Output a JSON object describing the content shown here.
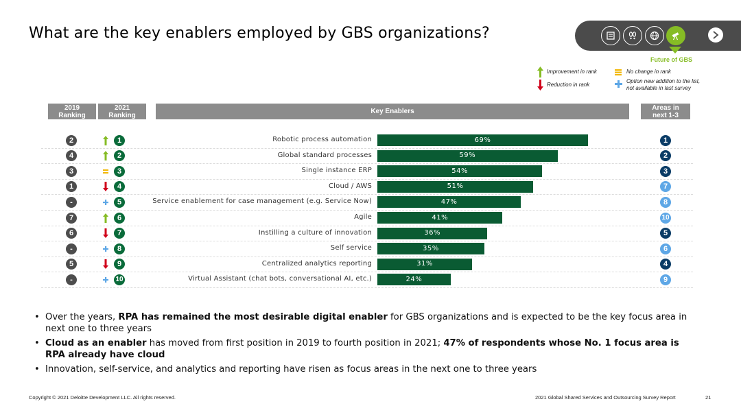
{
  "title": "What are the key enablers employed by GBS organizations?",
  "nav": {
    "icons": [
      "document-icon",
      "footprints-icon",
      "globe-icon",
      "telescope-icon"
    ],
    "active_index": 3,
    "active_label": "Future of GBS",
    "next_icon": "chevron-right-icon",
    "colors": {
      "pill": "#4b4b4b",
      "active": "#86bc25"
    }
  },
  "legend": {
    "improvement": "Improvement in rank",
    "no_change": "No change in rank",
    "reduction": "Reduction in rank",
    "new_line1": "Option new addition to the list,",
    "new_line2": "not available in last survey"
  },
  "headers": {
    "rank2019_line1": "2019",
    "rank2019_line2": "Ranking",
    "rank2021_line1": "2021",
    "rank2021_line2": "Ranking",
    "enablers": "Key Enablers",
    "areas_line1": "Areas in",
    "areas_line2": "next 1-3"
  },
  "chart_data": {
    "type": "bar",
    "orientation": "horizontal",
    "xlim": [
      0,
      100
    ],
    "categories": [
      "Robotic process automation",
      "Global standard processes",
      "Single instance ERP",
      "Cloud / AWS",
      "Service enablement for case management (e.g. Service Now)",
      "Agile",
      "Instilling a culture of innovation",
      "Self service",
      "Centralized analytics reporting",
      "Virtual Assistant (chat bots, conversational AI, etc.)"
    ],
    "values": [
      69,
      59,
      54,
      51,
      47,
      41,
      36,
      35,
      31,
      24
    ],
    "value_labels": [
      "69%",
      "59%",
      "54%",
      "51%",
      "47%",
      "41%",
      "36%",
      "35%",
      "31%",
      "24%"
    ],
    "rank_2019": [
      "2",
      "4",
      "3",
      "1",
      "-",
      "7",
      "6",
      "-",
      "5",
      "-"
    ],
    "rank_2021": [
      "1",
      "2",
      "3",
      "4",
      "5",
      "6",
      "7",
      "8",
      "9",
      "10"
    ],
    "rank_change": [
      "up",
      "up",
      "same",
      "down",
      "new",
      "up",
      "down",
      "new",
      "down",
      "new"
    ],
    "areas_next_1_3": [
      "1",
      "2",
      "3",
      "7",
      "8",
      "10",
      "5",
      "6",
      "4",
      "9"
    ],
    "areas_top3_highlight": [
      true,
      true,
      true,
      false,
      false,
      false,
      true,
      false,
      true,
      false
    ],
    "colors": {
      "bar": "#0a5b33",
      "rank_2019": "#4d4d4d",
      "rank_2021": "#0a6b3a",
      "area_dark": "#0b3c66",
      "area_light": "#5ea7e6",
      "up": "#86bc25",
      "down": "#d0021b",
      "same": "#f2b705",
      "new": "#5ea7e6"
    }
  },
  "bullets": [
    {
      "pre": "Over the years, ",
      "bold": "RPA has remained the most desirable digital enabler",
      "post": " for GBS organizations and is expected to be the key focus area in next one to three years"
    },
    {
      "bold1": "Cloud as an enabler",
      "mid": " has moved from first position in 2019 to fourth position in 2021; ",
      "bold2": "47% of respondents whose No. 1 focus area is RPA already have cloud"
    },
    {
      "text": "Innovation, self-service, and analytics and reporting have risen as focus areas in the next one to three years"
    }
  ],
  "footer": {
    "copyright": "Copyright © 2021 Deloitte Development LLC. All rights reserved.",
    "report": "2021 Global Shared Services and Outsourcing Survey Report",
    "page": "21"
  }
}
